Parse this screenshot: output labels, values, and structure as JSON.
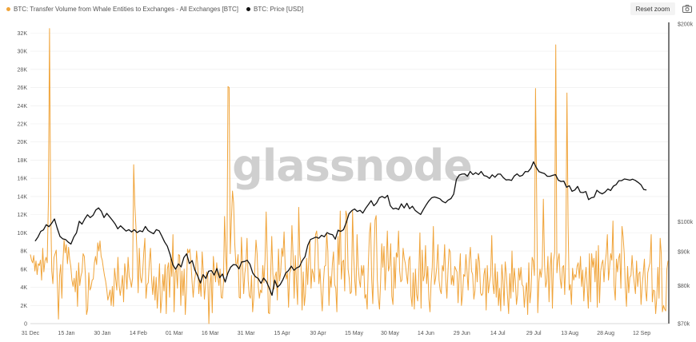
{
  "legend": [
    {
      "label": "BTC: Transfer Volume from Whale Entities to Exchanges - All Exchanges [BTC]",
      "color": "#f0a43a"
    },
    {
      "label": "BTC: Price [USD]",
      "color": "#111111"
    }
  ],
  "toolbar": {
    "reset_label": "Reset zoom"
  },
  "watermark": "glassnode",
  "chart_data": {
    "type": "line",
    "x_labels": [
      "31 Dec",
      "15 Jan",
      "30 Jan",
      "14 Feb",
      "01 Mar",
      "16 Mar",
      "31 Mar",
      "15 Apr",
      "30 Apr",
      "15 May",
      "30 May",
      "14 Jun",
      "29 Jun",
      "14 Jul",
      "29 Jul",
      "13 Aug",
      "28 Aug",
      "12 Sep"
    ],
    "y_left": {
      "ticks": [
        "0",
        "2K",
        "4K",
        "6K",
        "8K",
        "10K",
        "12K",
        "14K",
        "16K",
        "18K",
        "20K",
        "22K",
        "24K",
        "26K",
        "28K",
        "30K",
        "32K"
      ],
      "min": 0,
      "max": 33000
    },
    "y_right": {
      "ticks": [
        {
          "label": "$70k",
          "value": 70000
        },
        {
          "label": "$80k",
          "value": 80000
        },
        {
          "label": "$90k",
          "value": 90000
        },
        {
          "label": "$100k",
          "value": 100000
        },
        {
          "label": "$200k",
          "value": 200000
        }
      ],
      "scale": "log"
    },
    "series": [
      {
        "name": "BTC: Transfer Volume from Whale Entities to Exchanges - All Exchanges [BTC]",
        "color": "#f0a43a",
        "axis": "left",
        "values": [
          7600,
          7000,
          6700,
          7500,
          5800,
          6900,
          5400,
          6600,
          6400,
          7000,
          4800,
          8300,
          5700,
          6900,
          7300,
          6700,
          13500,
          32500,
          13000,
          5800,
          4400,
          7300,
          7700,
          8100,
          4400,
          500,
          5300,
          6500,
          2800,
          6800,
          9200,
          7800,
          8700,
          6600,
          8400,
          7100,
          6300,
          4800,
          4100,
          5000,
          3500,
          5800,
          1900,
          6700,
          4200,
          5200,
          5700,
          7700,
          7400,
          5200,
          1000,
          1600,
          5600,
          3700,
          4000,
          4800,
          4900,
          6700,
          7400,
          6500,
          8900,
          8000,
          9100,
          7400,
          7000,
          6100,
          5300,
          4700,
          3800,
          2600,
          3100,
          3700,
          2000,
          4100,
          1900,
          6100,
          4900,
          3700,
          7300,
          4200,
          3100,
          4100,
          5300,
          2400,
          6600,
          5500,
          3800,
          7300,
          5200,
          4800,
          4000,
          5000,
          17500,
          13100,
          10700,
          7700,
          3400,
          8300,
          5100,
          4500,
          5600,
          7800,
          9400,
          2800,
          4300,
          4500,
          6800,
          8300,
          4900,
          3200,
          5200,
          2600,
          5100,
          1700,
          3900,
          6600,
          1200,
          2700,
          5400,
          3600,
          6500,
          1100,
          6000,
          6700,
          2900,
          7200,
          5200,
          9800,
          1300,
          5600,
          6000,
          3900,
          7600,
          7500,
          2000,
          5800,
          3100,
          6000,
          1000,
          3600,
          8200,
          7800,
          8200,
          6700,
          4600,
          2900,
          4600,
          5400,
          8000,
          6600,
          3300,
          4800,
          3000,
          7900,
          5800,
          2700,
          4300,
          5700,
          5200,
          0,
          4300,
          5600,
          1200,
          7400,
          5700,
          4600,
          6700,
          5100,
          4200,
          6000,
          2900,
          2800,
          4500,
          11800,
          7400,
          5300,
          26100,
          26000,
          7700,
          11300,
          14600,
          13300,
          8900,
          6600,
          6600,
          7600,
          2900,
          2800,
          9500,
          6600,
          3300,
          5500,
          6500,
          9400,
          4800,
          3100,
          2800,
          5300,
          1300,
          2800,
          6400,
          9200,
          7700,
          4100,
          2800,
          3700,
          3400,
          6400,
          4500,
          7000,
          12300,
          7200,
          1200,
          1100,
          5300,
          9600,
          5500,
          3800,
          5200,
          5700,
          2600,
          8200,
          4700,
          5700,
          8300,
          7400,
          10100,
          6200,
          4900,
          5600,
          1800,
          5600,
          5900,
          10800,
          7600,
          2800,
          7500,
          4700,
          2100,
          12800,
          7600,
          6600,
          1500,
          5700,
          2000,
          3300,
          7200,
          4300,
          7200,
          9200,
          3900,
          6000,
          5500,
          4600,
          9800,
          10200,
          8700,
          4400,
          6000,
          3400,
          1400,
          4400,
          6300,
          6400,
          10000,
          8000,
          2000,
          5200,
          4000,
          6600,
          7900,
          4300,
          3900,
          1300,
          9600,
          6500,
          12400,
          4900,
          6800,
          7000,
          3600,
          12400,
          11900,
          6000,
          5000,
          3300,
          3500,
          12400,
          7500,
          4700,
          3100,
          9800,
          6400,
          4800,
          4000,
          6400,
          5300,
          6400,
          2800,
          3200,
          1600,
          6400,
          9900,
          11100,
          4900,
          2200,
          7300,
          11400,
          11900,
          4900,
          2800,
          1600,
          4800,
          8800,
          6200,
          8500,
          3700,
          6500,
          10200,
          5800,
          6400,
          8800,
          3000,
          2100,
          7300,
          3900,
          7800,
          7300,
          10200,
          5800,
          4600,
          4800,
          8300,
          7200,
          6600,
          5400,
          4400,
          7000,
          7400,
          3100,
          1900,
          5600,
          1600,
          6000,
          3200,
          2500,
          5300,
          10000,
          1700,
          8100,
          4700,
          5300,
          8600,
          4400,
          6300,
          2700,
          1300,
          4500,
          6200,
          10700,
          4300,
          5000,
          6200,
          8700,
          4800,
          3700,
          3300,
          6400,
          5800,
          8700,
          4800,
          2800,
          5800,
          8200,
          7900,
          4300,
          5300,
          4200,
          6300,
          6000,
          5700,
          2300,
          5300,
          7700,
          2000,
          3200,
          5400,
          5200,
          7600,
          5700,
          3700,
          7100,
          8400,
          5800,
          5400,
          2700,
          3600,
          7100,
          4600,
          7700,
          6800,
          3400,
          3100,
          3300,
          5400,
          6100,
          1500,
          6400,
          3400,
          4500,
          5300,
          9700,
          4400,
          3300,
          6600,
          2900,
          5700,
          2000,
          3900,
          1400,
          6500,
          4800,
          2000,
          6800,
          5500,
          3200,
          1100,
          5500,
          2800,
          8000,
          3500,
          6100,
          4700,
          2100,
          3200,
          6100,
          4800,
          6200,
          4300,
          4100,
          1800,
          3500,
          4500,
          1000,
          6700,
          2300,
          3600,
          7300,
          6900,
          5300,
          25900,
          14000,
          1200,
          4600,
          6000,
          5100,
          6300,
          13700,
          6500,
          4000,
          4700,
          7400,
          2400,
          6200,
          7800,
          1700,
          6900,
          7800,
          30700,
          5600,
          7000,
          7700,
          4900,
          3900,
          6200,
          6400,
          3200,
          7800,
          25400,
          10900,
          3700,
          4300,
          2100,
          6100,
          4800,
          5400,
          5100,
          6300,
          6700,
          5000,
          7400,
          4100,
          5900,
          2500,
          4900,
          6200,
          4000,
          1700,
          7700,
          2400,
          7700,
          6200,
          7200,
          4600,
          8000,
          1800,
          8600,
          2300,
          5700,
          6600,
          7000,
          4600,
          6600,
          7700,
          9800,
          4800,
          6200,
          7700,
          7000,
          11300,
          4200,
          2600,
          7100,
          5700,
          7200,
          7700,
          3900,
          10700,
          9600,
          7700,
          3900,
          1900,
          6300,
          3400,
          5100,
          5300,
          7500,
          5600,
          4400,
          3300,
          6900,
          4100,
          5500,
          5700,
          2100,
          4100,
          5600,
          7100,
          3700,
          2500,
          5600,
          6200,
          6700,
          9800,
          2400,
          3700,
          3600,
          1100,
          2900,
          6200,
          2800,
          9400,
          7700,
          1300,
          2000,
          1600,
          1400,
          6000,
          6900
        ]
      },
      {
        "name": "BTC: Price [USD]",
        "color": "#111111",
        "axis": "right",
        "values": [
          93500,
          94800,
          96700,
          97200,
          99000,
          98300,
          99500,
          101000,
          97800,
          95000,
          94200,
          94000,
          93100,
          92500,
          94800,
          96200,
          100200,
          99200,
          101000,
          102500,
          101500,
          102300,
          104200,
          105000,
          103800,
          101500,
          103000,
          101800,
          100600,
          99300,
          97600,
          98600,
          97700,
          96800,
          97300,
          96500,
          97300,
          96300,
          96900,
          96600,
          98400,
          97000,
          96400,
          95900,
          97300,
          96900,
          95100,
          93200,
          91800,
          89200,
          86000,
          84700,
          86300,
          85400,
          88200,
          89400,
          86400,
          87300,
          84500,
          82800,
          80700,
          83100,
          82000,
          84100,
          84300,
          83000,
          84900,
          82200,
          83300,
          81000,
          83600,
          85300,
          86100,
          86000,
          84800,
          86900,
          87000,
          87400,
          86200,
          83600,
          82500,
          82000,
          80600,
          82100,
          81100,
          79300,
          77300,
          81500,
          79500,
          80300,
          81700,
          83600,
          84300,
          85600,
          84400,
          85100,
          85500,
          87300,
          88500,
          92100,
          94000,
          94400,
          94800,
          94400,
          95400,
          94900,
          96300,
          95800,
          95600,
          94100,
          97100,
          96700,
          97300,
          99800,
          102900,
          104000,
          104600,
          103700,
          104100,
          103100,
          104800,
          106200,
          107700,
          105800,
          106800,
          108800,
          109300,
          108700,
          109700,
          105800,
          104600,
          104900,
          104400,
          106500,
          105000,
          106700,
          104700,
          105600,
          104100,
          103300,
          102600,
          104400,
          106100,
          107600,
          108800,
          109100,
          108800,
          108400,
          107400,
          106900,
          107900,
          108500,
          110200,
          116000,
          117800,
          118200,
          118300,
          117300,
          119300,
          118000,
          118800,
          118000,
          119300,
          117600,
          117300,
          116400,
          117900,
          116900,
          118200,
          118200,
          116800,
          115800,
          115900,
          115600,
          117400,
          118300,
          117300,
          117700,
          119300,
          119200,
          120600,
          123400,
          121000,
          119200,
          118800,
          118400,
          117300,
          117300,
          117700,
          118000,
          115700,
          115200,
          115300,
          112900,
          113500,
          111300,
          111800,
          113200,
          110900,
          110800,
          111200,
          108100,
          108800,
          109000,
          111700,
          110800,
          110300,
          111000,
          112200,
          111600,
          113300,
          113900,
          115500,
          115500,
          116200,
          116000,
          115700,
          116100,
          115600,
          114800,
          113900,
          112000,
          111800
        ]
      }
    ],
    "grid": "horizontal",
    "legend_position": "top-left"
  }
}
